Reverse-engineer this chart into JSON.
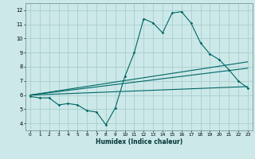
{
  "title": "",
  "xlabel": "Humidex (Indice chaleur)",
  "ylabel": "",
  "bg_color": "#cce8e8",
  "grid_color": "#aacece",
  "line_color": "#006666",
  "xlim": [
    -0.5,
    23.5
  ],
  "ylim": [
    3.5,
    12.5
  ],
  "xticks": [
    0,
    1,
    2,
    3,
    4,
    5,
    6,
    7,
    8,
    9,
    10,
    11,
    12,
    13,
    14,
    15,
    16,
    17,
    18,
    19,
    20,
    21,
    22,
    23
  ],
  "yticks": [
    4,
    5,
    6,
    7,
    8,
    9,
    10,
    11,
    12
  ],
  "line1": {
    "x": [
      0,
      1,
      2,
      3,
      4,
      5,
      6,
      7,
      8,
      9,
      10,
      11,
      12,
      13,
      14,
      15,
      16,
      17,
      18,
      19,
      20,
      21,
      22,
      23
    ],
    "y": [
      5.9,
      5.8,
      5.8,
      5.3,
      5.4,
      5.3,
      4.9,
      4.8,
      3.9,
      5.1,
      7.3,
      9.0,
      11.4,
      11.1,
      10.4,
      11.8,
      11.9,
      11.1,
      9.7,
      8.9,
      8.5,
      7.8,
      7.0,
      6.5
    ]
  },
  "line2": {
    "x": [
      0,
      23
    ],
    "y": [
      6.0,
      7.9
    ]
  },
  "line3": {
    "x": [
      0,
      23
    ],
    "y": [
      6.0,
      8.35
    ]
  },
  "line4": {
    "x": [
      0,
      23
    ],
    "y": [
      6.0,
      6.6
    ]
  }
}
